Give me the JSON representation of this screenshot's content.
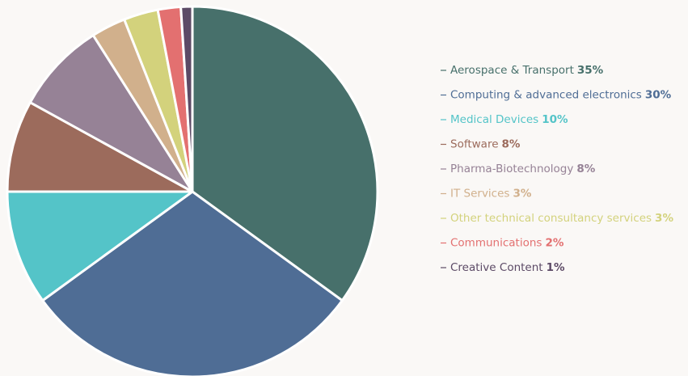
{
  "chart_data": {
    "type": "pie",
    "categories": [
      "Aerospace & Transport",
      "Computing & advanced electronics",
      "Medical Devices",
      "Software",
      "Pharma-Biotechnology",
      "IT Services",
      "Other technical consultancy services",
      "Communications",
      "Creative Content"
    ],
    "values": [
      35,
      30,
      10,
      8,
      8,
      3,
      3,
      2,
      1
    ],
    "value_labels": [
      "35%",
      "30%",
      "10%",
      "8%",
      "8%",
      "3%",
      "3%",
      "2%",
      "1%"
    ],
    "colors": [
      "#47706b",
      "#4f6d95",
      "#54c4c8",
      "#9c6b5c",
      "#968296",
      "#d1b08c",
      "#d3d27c",
      "#e37070",
      "#5c4a66"
    ],
    "legend": "right"
  }
}
